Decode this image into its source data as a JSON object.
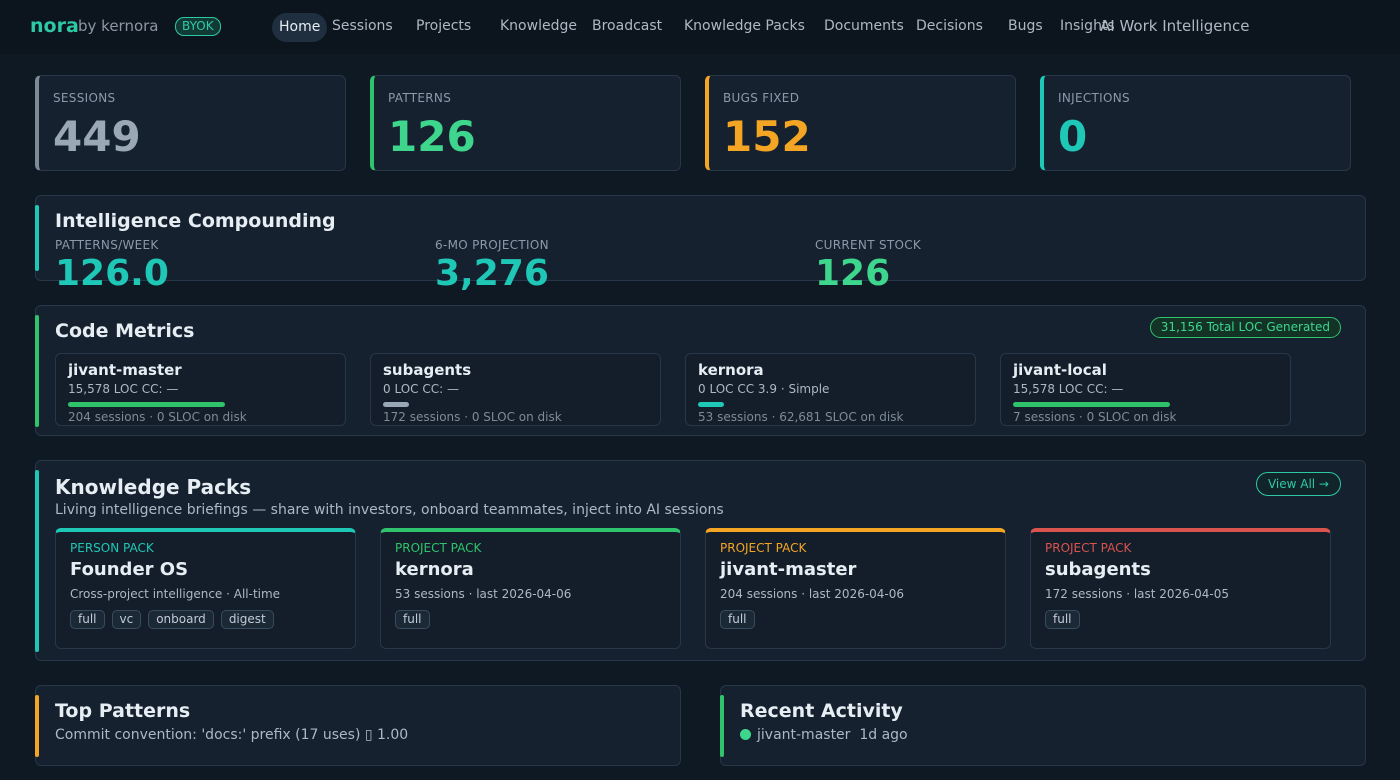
{
  "nav": {
    "brand": "nora",
    "by": "by kernora",
    "badge": "BYOK",
    "links": [
      "Home",
      "Sessions",
      "Projects",
      "Knowledge",
      "Broadcast",
      "Knowledge Packs",
      "Documents",
      "Decisions",
      "Bugs",
      "Insights"
    ],
    "active": "Home",
    "tagline": "AI Work Intelligence"
  },
  "stats": [
    {
      "label": "SESSIONS",
      "value": "449",
      "color": "#9aa7b5",
      "accent": "#7d8a97"
    },
    {
      "label": "PATTERNS",
      "value": "126",
      "color": "#3dd68c",
      "accent": "#2fc46c"
    },
    {
      "label": "BUGS FIXED",
      "value": "152",
      "color": "#f5a524",
      "accent": "#f5a524"
    },
    {
      "label": "INJECTIONS",
      "value": "0",
      "color": "#1fc7b6",
      "accent": "#1fc7b6"
    }
  ],
  "compounding": {
    "title": "Intelligence Compounding",
    "cols": [
      {
        "label": "PATTERNS/WEEK",
        "value": "126.0",
        "color": "#1fc7b6"
      },
      {
        "label": "6-MO PROJECTION",
        "value": "3,276",
        "color": "#1fc7b6"
      },
      {
        "label": "CURRENT STOCK",
        "value": "126",
        "color": "#3dd68c"
      }
    ]
  },
  "code_metrics": {
    "title": "Code Metrics",
    "total_badge": "31,156 Total LOC Generated",
    "cards": [
      {
        "name": "jivant-master",
        "loc": "15,578 LOC  CC: —",
        "sessions": "204 sessions · 0 SLOC on disk",
        "bar_fraction": 0.54,
        "bar_color": "#2fc46c"
      },
      {
        "name": "subagents",
        "loc": "0 LOC  CC: —",
        "sessions": "172 sessions · 0 SLOC on disk",
        "bar_fraction": 0.09,
        "bar_color": "#9aa7b5"
      },
      {
        "name": "kernora",
        "loc": "0 LOC  CC 3.9 · Simple",
        "sessions": "53 sessions · 62,681 SLOC on disk",
        "bar_fraction": 0.09,
        "bar_color": "#1fc7b6"
      },
      {
        "name": "jivant-local",
        "loc": "15,578 LOC  CC: —",
        "sessions": "7 sessions · 0 SLOC on disk",
        "bar_fraction": 0.54,
        "bar_color": "#2fc46c"
      }
    ]
  },
  "knowledge_packs": {
    "title": "Knowledge Packs",
    "subtitle": "Living intelligence briefings — share with investors, onboard teammates, inject into AI sessions",
    "view_all": "View All →",
    "packs": [
      {
        "type": "PERSON PACK",
        "name": "Founder OS",
        "meta": "Cross-project intelligence · All-time",
        "tags": [
          "full",
          "vc",
          "onboard",
          "digest"
        ],
        "color": "#1fc7b6"
      },
      {
        "type": "PROJECT PACK",
        "name": "kernora",
        "meta": "53 sessions · last 2026-04-06",
        "tags": [
          "full"
        ],
        "color": "#2fc46c"
      },
      {
        "type": "PROJECT PACK",
        "name": "jivant-master",
        "meta": "204 sessions · last 2026-04-06",
        "tags": [
          "full"
        ],
        "color": "#f5a524"
      },
      {
        "type": "PROJECT PACK",
        "name": "subagents",
        "meta": "172 sessions · last 2026-04-05",
        "tags": [
          "full"
        ],
        "color": "#d9534f"
      }
    ]
  },
  "top_patterns": {
    "title": "Top Patterns",
    "item": "Commit convention: 'docs:' prefix (17 uses)  ▯ 1.00"
  },
  "recent_activity": {
    "title": "Recent Activity",
    "project": "jivant-master",
    "time": "1d ago"
  }
}
